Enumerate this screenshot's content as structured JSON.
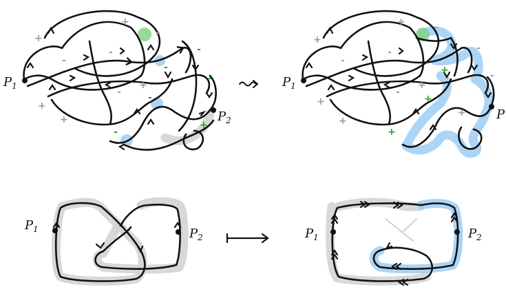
{
  "colors": {
    "ink": "#111111",
    "halo_grey": "#d4d4d4",
    "halo_blue": "#9dccf2",
    "halo_green": "#7fcf7f",
    "sign_grey": "#9a9a9a",
    "sign_green": "#2a9d2a"
  },
  "labels": {
    "p1": "P",
    "p1_sub": "1",
    "p2": "P",
    "p2_sub": "2",
    "p2_cut": "P"
  },
  "arrows": {
    "squiggle": "squiggle-arrow",
    "mapsto": "maps-to-arrow"
  },
  "signs": {
    "plus": "+",
    "minus": "-"
  }
}
